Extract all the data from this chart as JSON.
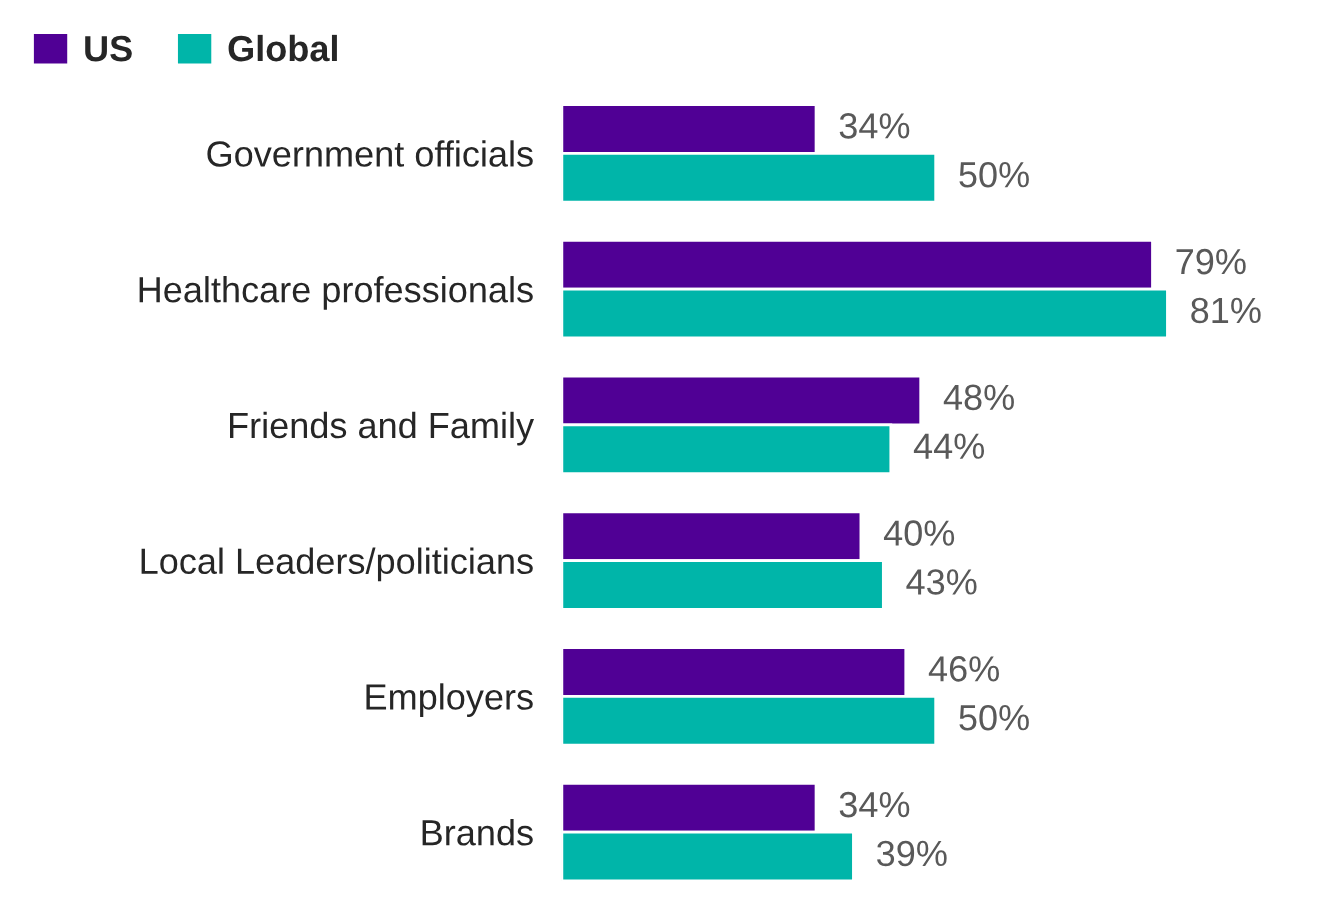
{
  "chart_data": {
    "type": "bar",
    "orientation": "horizontal",
    "categories": [
      "Government officials",
      "Healthcare professionals",
      "Friends and Family",
      "Local Leaders/politicians",
      "Employers",
      "Brands"
    ],
    "series": [
      {
        "name": "US",
        "color": "#500095",
        "values": [
          34,
          79,
          48,
          40,
          46,
          34
        ],
        "value_labels": [
          "34%",
          "79%",
          "48%",
          "40%",
          "46%",
          "34%"
        ]
      },
      {
        "name": "Global",
        "color": "#00b5a9",
        "values": [
          50,
          81,
          44,
          43,
          50,
          39
        ],
        "value_labels": [
          "50%",
          "81%",
          "44%",
          "43%",
          "50%",
          "39%"
        ]
      }
    ],
    "tick_labels": "y",
    "legend": "top left",
    "grid": false
  }
}
